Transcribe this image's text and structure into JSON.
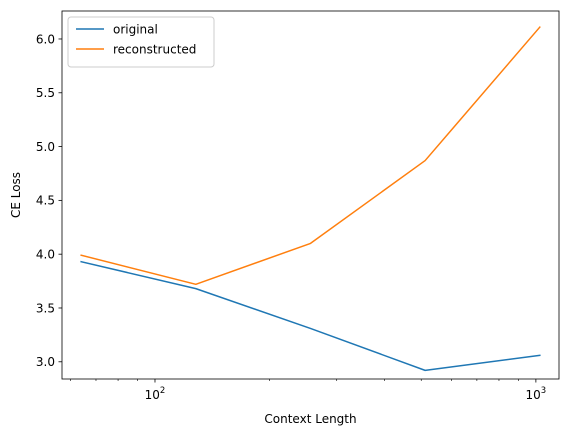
{
  "chart_data": {
    "type": "line",
    "title": "",
    "xlabel": "Context Length",
    "ylabel": "CE Loss",
    "xscale": "log",
    "xlim": [
      57,
      1150
    ],
    "ylim": [
      2.84,
      6.26
    ],
    "x_major_ticks": [
      {
        "value": 100,
        "base": "10",
        "exp": "2"
      },
      {
        "value": 1000,
        "base": "10",
        "exp": "3"
      }
    ],
    "x_minor_ticks": [
      60,
      70,
      80,
      90,
      200,
      300,
      400,
      500,
      600,
      700,
      800,
      900
    ],
    "y_ticks": [
      {
        "value": 3.0,
        "label": "3.0"
      },
      {
        "value": 3.5,
        "label": "3.5"
      },
      {
        "value": 4.0,
        "label": "4.0"
      },
      {
        "value": 4.5,
        "label": "4.5"
      },
      {
        "value": 5.0,
        "label": "5.0"
      },
      {
        "value": 5.5,
        "label": "5.5"
      },
      {
        "value": 6.0,
        "label": "6.0"
      }
    ],
    "x": [
      64,
      128,
      256,
      512,
      1024
    ],
    "series": [
      {
        "name": "original",
        "color": "#1f77b4",
        "values": [
          3.93,
          3.68,
          3.31,
          2.92,
          3.06
        ]
      },
      {
        "name": "reconstructed",
        "color": "#ff7f0e",
        "values": [
          3.99,
          3.72,
          4.1,
          4.87,
          6.11
        ]
      }
    ],
    "legend": "top-left",
    "grid": false
  }
}
